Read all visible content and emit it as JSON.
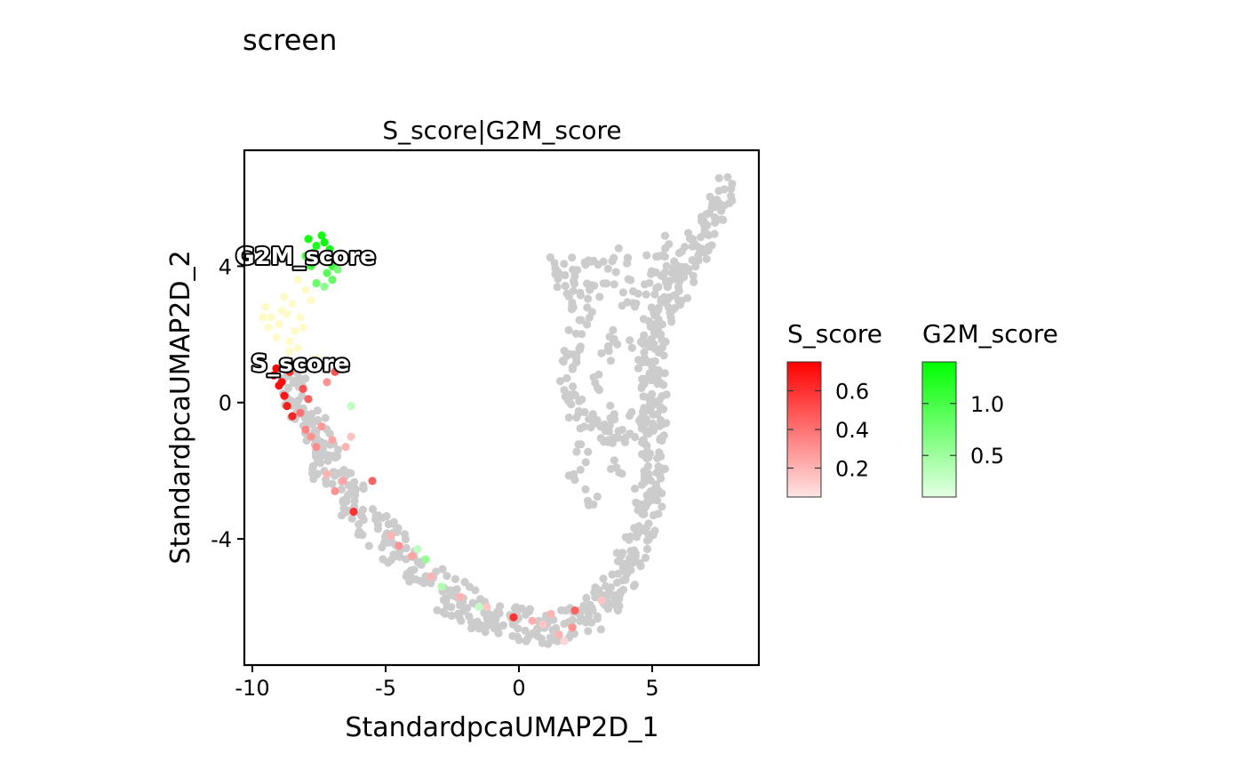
{
  "chart_data": {
    "type": "scatter",
    "title": "screen",
    "subtitle": "S_score|G2M_score",
    "xlabel": "StandardpcaUMAP2D_1",
    "ylabel": "StandardpcaUMAP2D_2",
    "xlim": [
      -10.3,
      9.0
    ],
    "ylim": [
      -7.7,
      7.4
    ],
    "xticks": [
      -10,
      -5,
      0,
      5
    ],
    "xtick_labels": [
      "-10",
      "-5",
      "0",
      "5"
    ],
    "yticks": [
      -4,
      0,
      4
    ],
    "ytick_labels": [
      "-4",
      "0",
      "4"
    ],
    "grid": false,
    "base_color": "#cccccc",
    "annotations": [
      {
        "text": "G2M_score",
        "x": -8.0,
        "y": 4.3
      },
      {
        "text": "S_score",
        "x": -8.2,
        "y": 1.15
      }
    ],
    "legends": [
      {
        "title": "S_score",
        "low_color": "#ffe5e5",
        "high_color": "#ff0000",
        "min": 0.05,
        "max": 0.75,
        "ticks": [
          0.2,
          0.4,
          0.6
        ],
        "tick_labels": [
          "0.2",
          "0.4",
          "0.6"
        ]
      },
      {
        "title": "G2M_score",
        "low_color": "#e5ffe5",
        "high_color": "#00ff00",
        "min": 0.1,
        "max": 1.4,
        "ticks": [
          0.5,
          1.0
        ],
        "tick_labels": [
          "0.5",
          "1.0"
        ]
      }
    ],
    "trajectory": [
      [
        -8.6,
        0.7
      ],
      [
        -8.3,
        0.0
      ],
      [
        -7.9,
        -0.7
      ],
      [
        -7.4,
        -1.5
      ],
      [
        -6.8,
        -2.3
      ],
      [
        -6.1,
        -3.0
      ],
      [
        -5.3,
        -3.7
      ],
      [
        -4.4,
        -4.4
      ],
      [
        -3.5,
        -5.1
      ],
      [
        -2.6,
        -5.7
      ],
      [
        -1.7,
        -6.1
      ],
      [
        -0.8,
        -6.4
      ],
      [
        0.2,
        -6.5
      ],
      [
        1.2,
        -6.6
      ],
      [
        2.2,
        -6.4
      ],
      [
        3.0,
        -6.0
      ],
      [
        3.6,
        -5.4
      ],
      [
        4.1,
        -4.8
      ],
      [
        4.5,
        -4.1
      ],
      [
        4.8,
        -3.2
      ],
      [
        5.0,
        -2.3
      ],
      [
        5.1,
        -1.3
      ],
      [
        5.1,
        -0.3
      ],
      [
        5.0,
        0.5
      ],
      [
        4.9,
        1.2
      ],
      [
        5.1,
        2.0
      ],
      [
        5.5,
        2.8
      ],
      [
        6.0,
        3.6
      ],
      [
        6.6,
        4.5
      ],
      [
        7.2,
        5.4
      ],
      [
        7.8,
        6.3
      ]
    ],
    "branch": [
      [
        1.5,
        4.3
      ],
      [
        1.9,
        3.6
      ],
      [
        2.4,
        3.0
      ],
      [
        2.2,
        2.0
      ],
      [
        1.9,
        1.0
      ],
      [
        2.0,
        0.1
      ],
      [
        2.6,
        -0.6
      ],
      [
        3.4,
        -1.0
      ],
      [
        4.2,
        -0.8
      ],
      [
        4.8,
        -0.3
      ]
    ],
    "loop_cells": [
      [
        2.5,
        4.0
      ],
      [
        3.2,
        3.8
      ],
      [
        3.9,
        3.5
      ],
      [
        4.6,
        3.2
      ],
      [
        5.2,
        3.6
      ],
      [
        4.2,
        2.6
      ],
      [
        3.6,
        2.0
      ],
      [
        3.1,
        1.5
      ],
      [
        4.4,
        1.7
      ],
      [
        2.9,
        3.2
      ],
      [
        3.8,
        4.2
      ],
      [
        4.9,
        4.1
      ],
      [
        2.4,
        -1.5
      ],
      [
        2.2,
        -2.2
      ],
      [
        3.8,
        -1.8
      ],
      [
        2.6,
        -2.8
      ],
      [
        5.8,
        4.0
      ],
      [
        5.5,
        4.6
      ],
      [
        3.4,
        -0.4
      ],
      [
        2.9,
        0.5
      ]
    ],
    "s_cells": [
      [
        -9.2,
        0.8,
        0.72
      ],
      [
        -9.0,
        0.5,
        0.7
      ],
      [
        -8.8,
        0.2,
        0.68
      ],
      [
        -8.7,
        -0.1,
        0.66
      ],
      [
        -8.5,
        -0.4,
        0.64
      ],
      [
        -8.9,
        0.6,
        0.72
      ],
      [
        -9.1,
        1.0,
        0.74
      ],
      [
        -8.6,
        0.9,
        0.6
      ],
      [
        -8.2,
        -0.3,
        0.4
      ],
      [
        -8.0,
        -0.8,
        0.35
      ],
      [
        -7.8,
        -1.0,
        0.3
      ],
      [
        -7.4,
        -0.7,
        0.28
      ],
      [
        -7.0,
        -1.1,
        0.25
      ],
      [
        -7.6,
        -1.3,
        0.32
      ],
      [
        -6.5,
        -1.3,
        0.2
      ],
      [
        -6.9,
        0.9,
        0.5
      ],
      [
        -7.4,
        1.1,
        0.35
      ],
      [
        -7.2,
        0.6,
        0.3
      ],
      [
        -6.2,
        -3.2,
        0.6
      ],
      [
        -6.6,
        -2.3,
        0.25
      ],
      [
        -6.9,
        -2.6,
        0.3
      ],
      [
        -7.2,
        -2.1,
        0.2
      ],
      [
        -5.5,
        -2.3,
        0.45
      ],
      [
        -4.8,
        -3.9,
        0.2
      ],
      [
        -4.5,
        -4.2,
        0.3
      ],
      [
        -4.0,
        -4.5,
        0.25
      ],
      [
        -3.3,
        -5.1,
        0.2
      ],
      [
        -2.2,
        -5.7,
        0.2
      ],
      [
        -1.2,
        -6.0,
        0.15
      ],
      [
        -0.2,
        -6.3,
        0.18
      ],
      [
        0.5,
        -6.4,
        0.22
      ],
      [
        0.9,
        -6.5,
        0.15
      ],
      [
        1.5,
        -6.8,
        0.2
      ],
      [
        1.7,
        -7.0,
        0.1
      ],
      [
        2.0,
        -6.6,
        0.3
      ],
      [
        2.1,
        -6.1,
        0.45
      ],
      [
        1.2,
        -6.2,
        0.2
      ],
      [
        3.1,
        -5.8,
        0.15
      ],
      [
        -0.2,
        -6.3,
        0.6
      ],
      [
        -6.3,
        -1.0,
        0.15
      ],
      [
        -8.1,
        0.4,
        0.5
      ],
      [
        -7.9,
        0.1,
        0.45
      ]
    ],
    "g2m_cells": [
      [
        -7.9,
        4.8,
        1.3
      ],
      [
        -7.6,
        4.6,
        1.2
      ],
      [
        -7.3,
        4.7,
        1.35
      ],
      [
        -7.1,
        4.5,
        1.25
      ],
      [
        -6.9,
        4.2,
        1.1
      ],
      [
        -7.5,
        4.2,
        1.15
      ],
      [
        -7.8,
        4.0,
        1.0
      ],
      [
        -7.2,
        3.8,
        0.9
      ],
      [
        -7.0,
        3.6,
        0.85
      ],
      [
        -7.6,
        3.5,
        0.8
      ],
      [
        -8.0,
        4.3,
        1.0
      ],
      [
        -7.4,
        4.9,
        1.3
      ],
      [
        -7.0,
        4.0,
        1.05
      ],
      [
        -7.3,
        3.4,
        0.6
      ],
      [
        -6.8,
        3.9,
        0.7
      ],
      [
        -7.7,
        4.4,
        1.2
      ],
      [
        -6.3,
        -0.1,
        0.3
      ],
      [
        -3.5,
        -4.6,
        0.55
      ],
      [
        -3.8,
        -4.3,
        0.3
      ],
      [
        -2.9,
        -5.4,
        0.4
      ],
      [
        -1.5,
        -6.0,
        0.3
      ]
    ],
    "yellow_cells": [
      [
        -9.5,
        2.8
      ],
      [
        -9.3,
        2.5
      ],
      [
        -9.0,
        2.3
      ],
      [
        -8.7,
        2.6
      ],
      [
        -8.5,
        2.9
      ],
      [
        -8.8,
        3.1
      ],
      [
        -9.4,
        2.2
      ],
      [
        -8.4,
        2.1
      ],
      [
        -8.2,
        2.5
      ],
      [
        -8.6,
        1.8
      ],
      [
        -8.3,
        1.6
      ],
      [
        -9.1,
        1.9
      ],
      [
        -8.0,
        3.3
      ],
      [
        -7.8,
        3.0
      ],
      [
        -8.3,
        3.6
      ],
      [
        -8.9,
        2.7
      ],
      [
        -8.1,
        2.2
      ],
      [
        -9.6,
        2.5
      ],
      [
        -8.6,
        1.5
      ],
      [
        -7.6,
        1.3
      ]
    ]
  }
}
